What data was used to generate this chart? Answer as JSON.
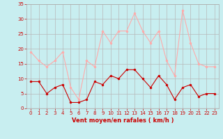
{
  "x": [
    0,
    1,
    2,
    3,
    4,
    5,
    6,
    7,
    8,
    9,
    10,
    11,
    12,
    13,
    14,
    15,
    16,
    17,
    18,
    19,
    20,
    21,
    22,
    23
  ],
  "vent_moyen": [
    9,
    9,
    5,
    7,
    8,
    2,
    2,
    3,
    9,
    8,
    11,
    10,
    13,
    13,
    10,
    7,
    11,
    8,
    3,
    7,
    8,
    4,
    5,
    5
  ],
  "rafales": [
    19,
    16,
    14,
    16,
    19,
    7,
    3,
    16,
    14,
    26,
    22,
    26,
    26,
    32,
    26,
    22,
    26,
    16,
    11,
    33,
    22,
    15,
    14,
    14
  ],
  "xlabel": "Vent moyen/en rafales ( km/h )",
  "bg_color": "#c8eef0",
  "grid_color": "#b8b8b8",
  "line_color_moyen": "#cc0000",
  "line_color_rafales": "#ffaaaa",
  "ylim": [
    0,
    35
  ],
  "xlim": [
    -0.5,
    23.5
  ],
  "yticks": [
    0,
    5,
    10,
    15,
    20,
    25,
    30,
    35
  ],
  "xticks": [
    0,
    1,
    2,
    3,
    4,
    5,
    6,
    7,
    8,
    9,
    10,
    11,
    12,
    13,
    14,
    15,
    16,
    17,
    18,
    19,
    20,
    21,
    22,
    23
  ],
  "tick_fontsize": 5.0,
  "xlabel_fontsize": 6.0,
  "marker_size": 2.0,
  "line_width": 0.8
}
